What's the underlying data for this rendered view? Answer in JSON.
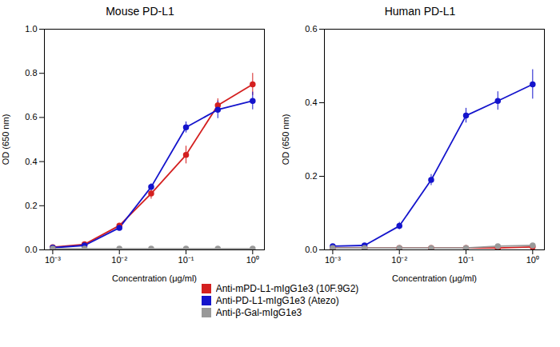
{
  "chart_data": [
    {
      "type": "line",
      "title": "Mouse PD-L1",
      "xlabel": "Concentration (μg/ml)",
      "ylabel": "OD (650 nm)",
      "log": "x",
      "grid": false,
      "legend": "bottom",
      "marker": "circle",
      "x": [
        0.001,
        0.003,
        0.01,
        0.03,
        0.1,
        0.3,
        1.0
      ],
      "series": [
        {
          "name": "Anti-mPD-L1-mIgG1e3 (10F.9G2)",
          "color": "#d42020",
          "values": [
            0.012,
            0.025,
            0.11,
            0.255,
            0.43,
            0.655,
            0.75
          ],
          "errors": [
            0.004,
            0.005,
            0.01,
            0.025,
            0.04,
            0.03,
            0.05
          ]
        },
        {
          "name": "Anti-PD-L1-mIgG1e3 (Atezo)",
          "color": "#1414cc",
          "values": [
            0.01,
            0.02,
            0.1,
            0.285,
            0.555,
            0.635,
            0.675
          ],
          "errors": [
            0.003,
            0.004,
            0.01,
            0.015,
            0.025,
            0.04,
            0.04
          ]
        },
        {
          "name": "Anti-β-Gal-mIgG1e3",
          "color": "#999999",
          "values": [
            0.005,
            0.005,
            0.005,
            0.005,
            0.005,
            0.005,
            0.005
          ],
          "errors": [
            0.002,
            0.002,
            0.002,
            0.002,
            0.002,
            0.002,
            0.002
          ]
        }
      ],
      "xlim": [
        0.00075,
        1.5
      ],
      "xticks": [
        {
          "value": 0.001,
          "label": "10⁻³"
        },
        {
          "value": 0.01,
          "label": "10⁻²"
        },
        {
          "value": 0.1,
          "label": "10⁻¹"
        },
        {
          "value": 1,
          "label": "10⁰"
        }
      ],
      "ylim": [
        0,
        1.0
      ],
      "yticks": [
        {
          "value": 0,
          "label": "0.0"
        },
        0.2,
        0.4,
        0.6,
        0.8,
        {
          "value": 1,
          "label": "1.0"
        }
      ]
    },
    {
      "type": "line",
      "title": "Human PD-L1",
      "xlabel": "Concentration (μg/ml)",
      "ylabel": "OD (650 nm)",
      "log": "x",
      "grid": false,
      "legend": "bottom",
      "marker": "circle",
      "x": [
        0.001,
        0.003,
        0.01,
        0.03,
        0.1,
        0.3,
        1.0
      ],
      "series": [
        {
          "name": "Anti-mPD-L1-mIgG1e3 (10F.9G2)",
          "color": "#d42020",
          "values": [
            0.005,
            0.005,
            0.005,
            0.005,
            0.005,
            0.005,
            0.008
          ],
          "errors": [
            0.001,
            0.001,
            0.001,
            0.001,
            0.001,
            0.001,
            0.002
          ]
        },
        {
          "name": "Anti-PD-L1-mIgG1e3 (Atezo)",
          "color": "#1414cc",
          "values": [
            0.01,
            0.012,
            0.065,
            0.19,
            0.365,
            0.405,
            0.45
          ],
          "errors": [
            0.005,
            0.005,
            0.01,
            0.015,
            0.02,
            0.025,
            0.04
          ]
        },
        {
          "name": "Anti-β-Gal-mIgG1e3",
          "color": "#999999",
          "values": [
            0.005,
            0.005,
            0.005,
            0.005,
            0.005,
            0.01,
            0.012
          ],
          "errors": [
            0.002,
            0.002,
            0.002,
            0.002,
            0.002,
            0.003,
            0.003
          ]
        }
      ],
      "xlim": [
        0.00075,
        1.5
      ],
      "xticks": [
        {
          "value": 0.001,
          "label": "10⁻³"
        },
        {
          "value": 0.01,
          "label": "10⁻²"
        },
        {
          "value": 0.1,
          "label": "10⁻¹"
        },
        {
          "value": 1,
          "label": "10⁰"
        }
      ],
      "ylim": [
        0,
        0.6
      ],
      "yticks": [
        {
          "value": 0,
          "label": "0.0"
        },
        0.2,
        0.4,
        0.6
      ]
    }
  ]
}
